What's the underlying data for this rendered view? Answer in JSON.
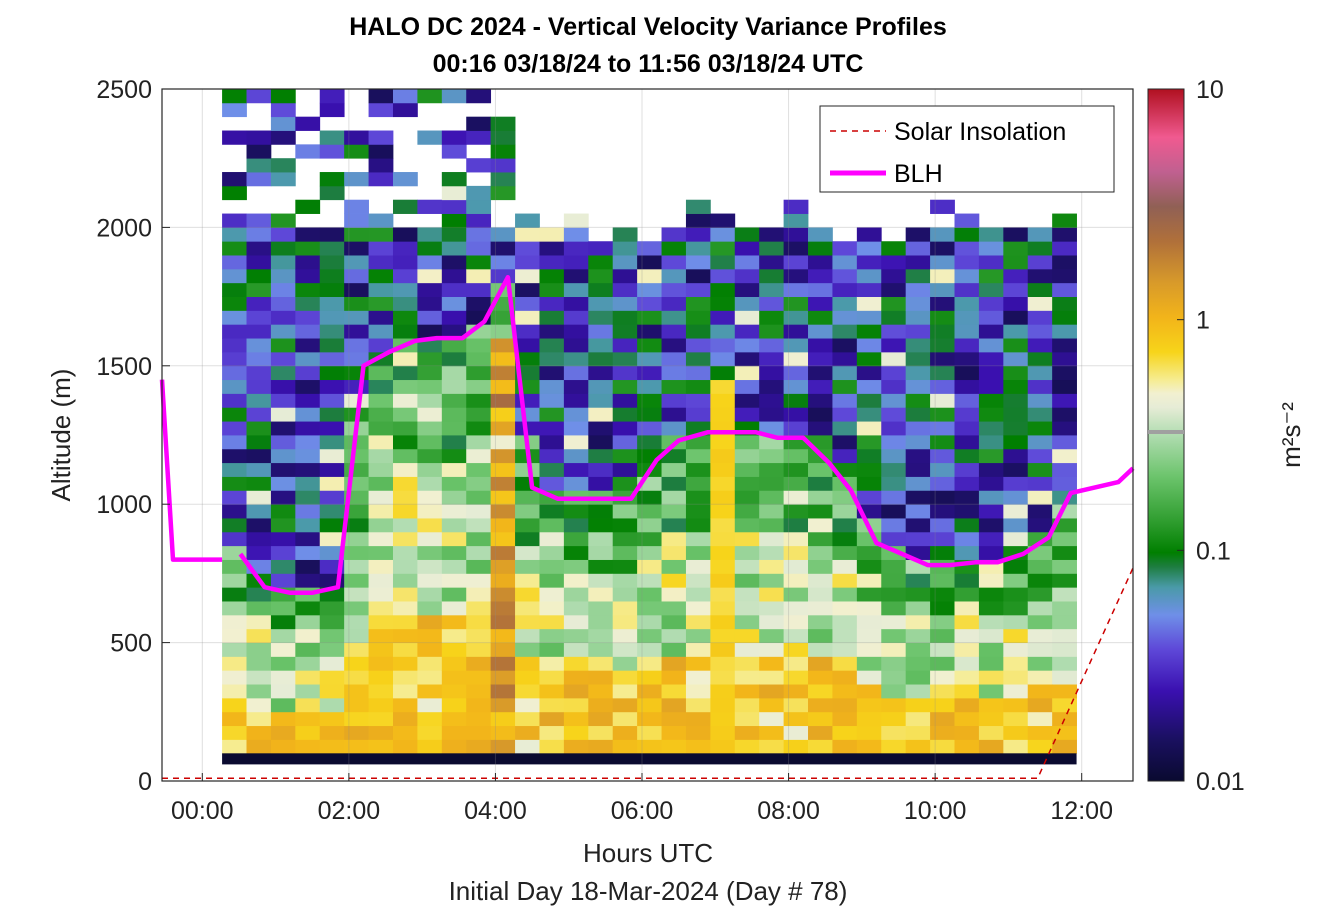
{
  "chart_data": {
    "type": "heatmap",
    "title_line1": "HALO DC 2024 - Vertical Velocity Variance Profiles",
    "title_line2": "00:16 03/18/24 to 11:56 03/18/24  UTC",
    "xlabel": "Hours UTC",
    "xlabel2": "Initial Day 18-Mar-2024 (Day # 78)",
    "ylabel": "Altitude (m)",
    "xlim": [
      -0.55,
      12.7
    ],
    "ylim": [
      0,
      2500
    ],
    "x_ticks": [
      {
        "value": 0,
        "label": "00:00"
      },
      {
        "value": 2,
        "label": "02:00"
      },
      {
        "value": 4,
        "label": "04:00"
      },
      {
        "value": 6,
        "label": "06:00"
      },
      {
        "value": 8,
        "label": "08:00"
      },
      {
        "value": 10,
        "label": "10:00"
      },
      {
        "value": 12,
        "label": "12:00"
      }
    ],
    "y_ticks": [
      {
        "value": 0,
        "label": "0"
      },
      {
        "value": 500,
        "label": "500"
      },
      {
        "value": 1000,
        "label": "1000"
      },
      {
        "value": 1500,
        "label": "1500"
      },
      {
        "value": 2000,
        "label": "2000"
      },
      {
        "value": 2500,
        "label": "2500"
      }
    ],
    "grid": true,
    "colorbar": {
      "label": "m²s⁻²",
      "scale": "log",
      "range": [
        0.01,
        10
      ],
      "ticks": [
        {
          "value": 0.01,
          "label": "0.01"
        },
        {
          "value": 0.1,
          "label": "0.1"
        },
        {
          "value": 1,
          "label": "1"
        },
        {
          "value": 10,
          "label": "10"
        }
      ]
    },
    "legend": {
      "position": "top-right",
      "entries": [
        {
          "label": "Solar Insolation",
          "color": "#cc0000",
          "style": "dashed"
        },
        {
          "label": "BLH",
          "color": "#ff00ff",
          "style": "solid"
        }
      ]
    },
    "grid_x_start": 0.27,
    "grid_x_end": 11.93,
    "grid_columns": 35,
    "grid_alt_start": 100,
    "grid_alt_step": 50,
    "grid_rows": 48,
    "series": [
      {
        "name": "BLH",
        "color": "#ff00ff",
        "x": [
          -0.55,
          -0.4,
          0.27,
          0.52,
          0.85,
          1.2,
          1.5,
          1.85,
          2.2,
          2.55,
          2.9,
          3.2,
          3.55,
          3.85,
          4.17,
          4.5,
          4.85,
          5.2,
          5.5,
          5.85,
          6.2,
          6.5,
          6.9,
          7.2,
          7.55,
          7.85,
          8.2,
          8.55,
          8.85,
          9.2,
          9.55,
          9.9,
          10.2,
          10.55,
          10.85,
          11.2,
          11.55,
          11.85,
          12.5,
          12.7
        ],
        "values": [
          1450,
          800,
          800,
          820,
          700,
          680,
          680,
          700,
          1500,
          1550,
          1590,
          1600,
          1600,
          1660,
          1820,
          1060,
          1020,
          1020,
          1020,
          1020,
          1160,
          1230,
          1260,
          1260,
          1260,
          1240,
          1240,
          1150,
          1050,
          860,
          820,
          780,
          780,
          790,
          790,
          820,
          880,
          1040,
          1080,
          1130
        ]
      },
      {
        "name": "Solar Insolation",
        "color": "#cc0000",
        "x": [
          -0.55,
          11.4,
          12.7
        ],
        "values": [
          10,
          10,
          770
        ]
      }
    ]
  }
}
